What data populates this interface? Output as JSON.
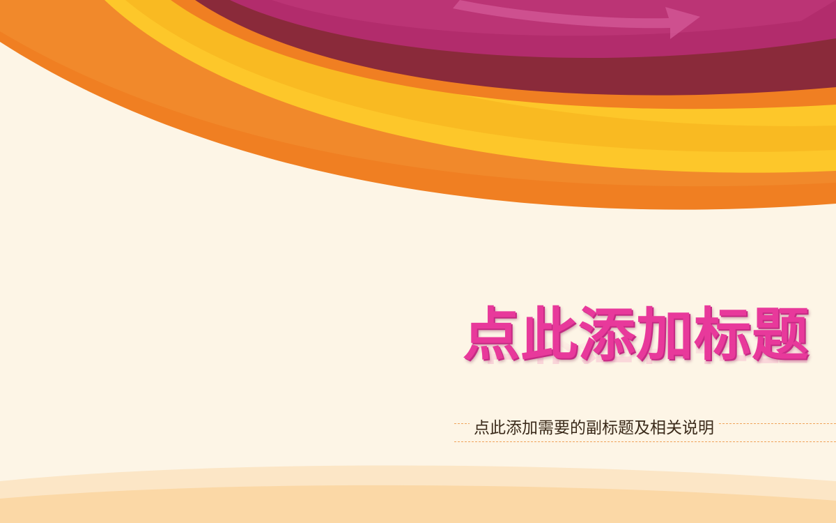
{
  "slide": {
    "title": "点此添加标题",
    "subtitle": "点此添加需要的副标题及相关说明"
  },
  "colors": {
    "background": "#fdf5e6",
    "title": "#e8399b",
    "band_orange": "#f07f22",
    "band_yellow": "#fdc72a",
    "band_magenta": "#b22c6c",
    "band_maroon": "#8a2a3a",
    "bottom_wave": "#fbd8a6",
    "dash": "#f0a35a"
  },
  "decor": {
    "arrow": "arrow-decoration"
  }
}
